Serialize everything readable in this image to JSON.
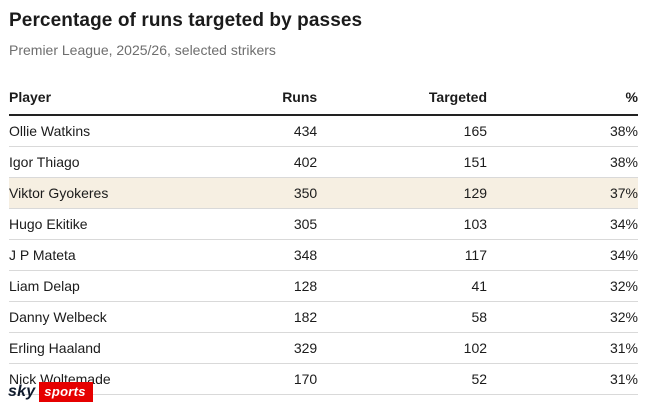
{
  "header": {
    "title": "Percentage of runs targeted by passes",
    "subtitle": "Premier League, 2025/26, selected strikers"
  },
  "table": {
    "headers": [
      "Player",
      "Runs",
      "Targeted",
      "%"
    ],
    "rows": [
      {
        "player": "Ollie Watkins",
        "runs": "434",
        "targeted": "165",
        "pct": "38%",
        "highlight": false
      },
      {
        "player": "Igor Thiago",
        "runs": "402",
        "targeted": "151",
        "pct": "38%",
        "highlight": false
      },
      {
        "player": "Viktor Gyokeres",
        "runs": "350",
        "targeted": "129",
        "pct": "37%",
        "highlight": true
      },
      {
        "player": "Hugo Ekitike",
        "runs": "305",
        "targeted": "103",
        "pct": "34%",
        "highlight": false
      },
      {
        "player": "J P Mateta",
        "runs": "348",
        "targeted": "117",
        "pct": "34%",
        "highlight": false
      },
      {
        "player": "Liam Delap",
        "runs": "128",
        "targeted": "41",
        "pct": "32%",
        "highlight": false
      },
      {
        "player": "Danny Welbeck",
        "runs": "182",
        "targeted": "58",
        "pct": "32%",
        "highlight": false
      },
      {
        "player": "Erling Haaland",
        "runs": "329",
        "targeted": "102",
        "pct": "31%",
        "highlight": false
      },
      {
        "player": "Nick Woltemade",
        "runs": "170",
        "targeted": "52",
        "pct": "31%",
        "highlight": false
      }
    ]
  },
  "chart_data": {
    "type": "table",
    "title": "Percentage of runs targeted by passes",
    "subtitle": "Premier League, 2025/26, selected strikers",
    "columns": [
      "Player",
      "Runs",
      "Targeted",
      "%"
    ],
    "rows": [
      [
        "Ollie Watkins",
        434,
        165,
        "38%"
      ],
      [
        "Igor Thiago",
        402,
        151,
        "38%"
      ],
      [
        "Viktor Gyokeres",
        350,
        129,
        "37%"
      ],
      [
        "Hugo Ekitike",
        305,
        103,
        "34%"
      ],
      [
        "J P Mateta",
        348,
        117,
        "34%"
      ],
      [
        "Liam Delap",
        128,
        41,
        "32%"
      ],
      [
        "Danny Welbeck",
        182,
        58,
        "32%"
      ],
      [
        "Erling Haaland",
        329,
        102,
        "31%"
      ],
      [
        "Nick Woltemade",
        170,
        52,
        "31%"
      ]
    ],
    "highlighted_row": "Viktor Gyokeres",
    "layout": {
      "numeric_columns_aligned": "right",
      "grid": "horizontal rules"
    }
  },
  "branding": {
    "sky": "sky",
    "sports": "sports"
  },
  "colors": {
    "highlight_row": "#f6efe2",
    "brand_red": "#e60000",
    "brand_dark": "#101b2d",
    "header_rule": "#222222",
    "row_rule": "#d9d9d9",
    "subtitle_gray": "#6e6e6e"
  }
}
